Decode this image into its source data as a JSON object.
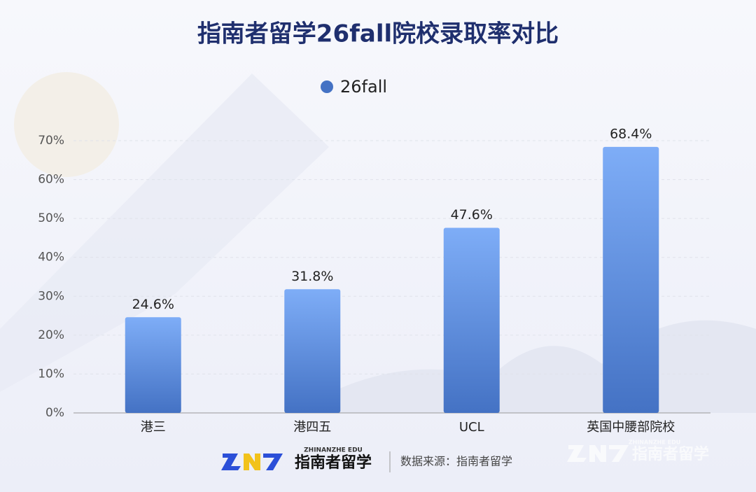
{
  "chart_data": {
    "type": "bar",
    "title": "指南者留学26fall院校录取率对比",
    "categories": [
      "港三",
      "港四五",
      "UCL",
      "英国中腰部院校"
    ],
    "series": [
      {
        "name": "26fall",
        "color": "#4472c4",
        "values": [
          24.6,
          31.8,
          47.6,
          68.4
        ],
        "value_labels": [
          "24.6%",
          "31.8%",
          "47.6%",
          "68.4%"
        ]
      }
    ],
    "ylim": [
      0,
      70
    ],
    "yticks": [
      {
        "value": 0,
        "label": "0%"
      },
      {
        "value": 10,
        "label": "10%"
      },
      {
        "value": 20,
        "label": "20%"
      },
      {
        "value": 30,
        "label": "30%"
      },
      {
        "value": 40,
        "label": "40%"
      },
      {
        "value": 50,
        "label": "50%"
      },
      {
        "value": 60,
        "label": "60%"
      },
      {
        "value": 70,
        "label": "70%"
      }
    ],
    "grid": true,
    "legend": "top"
  },
  "branding": {
    "logo_sub": "ZHINANZHE EDU",
    "logo_name": "指南者留学",
    "source": "数据来源：指南者留学"
  }
}
